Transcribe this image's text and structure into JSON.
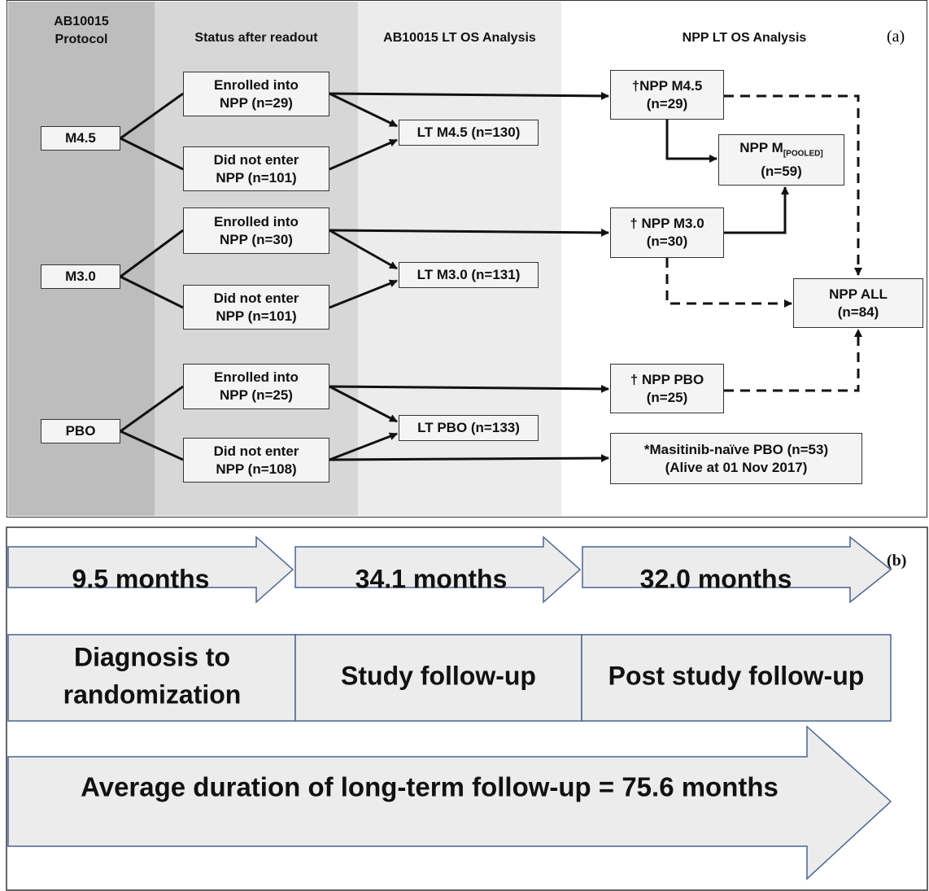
{
  "panel_a": {
    "label": "(a)",
    "headers": [
      {
        "lines": [
          "AB10015",
          "Protocol"
        ]
      },
      {
        "lines": [
          "Status after readout"
        ]
      },
      {
        "lines": [
          "AB10015 LT OS Analysis"
        ]
      },
      {
        "lines": [
          "NPP LT OS Analysis"
        ]
      }
    ],
    "nodes": [
      {
        "lines": [
          "M4.5"
        ]
      },
      {
        "lines": [
          "Enrolled into",
          "NPP (n=29)"
        ]
      },
      {
        "lines": [
          "Did not enter",
          "NPP (n=101)"
        ]
      },
      {
        "lines": [
          "LT M4.5 (n=130)"
        ]
      },
      {
        "lines": [
          "†NPP M4.5",
          "(n=29)"
        ]
      },
      {
        "lines": [
          "NPP M",
          "(n=59)"
        ],
        "subscript": "[POOLED]"
      },
      {
        "lines": [
          "M3.0"
        ]
      },
      {
        "lines": [
          "Enrolled into",
          "NPP (n=30)"
        ]
      },
      {
        "lines": [
          "Did not enter",
          "NPP (n=101)"
        ]
      },
      {
        "lines": [
          "LT M3.0 (n=131)"
        ]
      },
      {
        "lines": [
          "† NPP M3.0",
          "(n=30)"
        ]
      },
      {
        "lines": [
          "NPP ALL",
          "(n=84)"
        ]
      },
      {
        "lines": [
          "PBO"
        ]
      },
      {
        "lines": [
          "Enrolled into",
          "NPP (n=25)"
        ]
      },
      {
        "lines": [
          "Did not enter",
          "NPP (n=108)"
        ]
      },
      {
        "lines": [
          "LT PBO (n=133)"
        ]
      },
      {
        "lines": [
          "† NPP PBO",
          "(n=25)"
        ]
      },
      {
        "lines": [
          "*Masitinib-naïve PBO (n=53)",
          "(Alive at 01 Nov 2017)"
        ]
      }
    ]
  },
  "panel_b": {
    "label": "(b)",
    "durations": [
      "9.5 months",
      "34.1 months",
      "32.0 months"
    ],
    "phases": [
      {
        "lines": [
          "Diagnosis to",
          "randomization"
        ]
      },
      {
        "lines": [
          "Study follow-up"
        ]
      },
      {
        "lines": [
          "Post study follow-up"
        ]
      }
    ],
    "total": "Average duration of long-term follow-up = 75.6 months"
  }
}
